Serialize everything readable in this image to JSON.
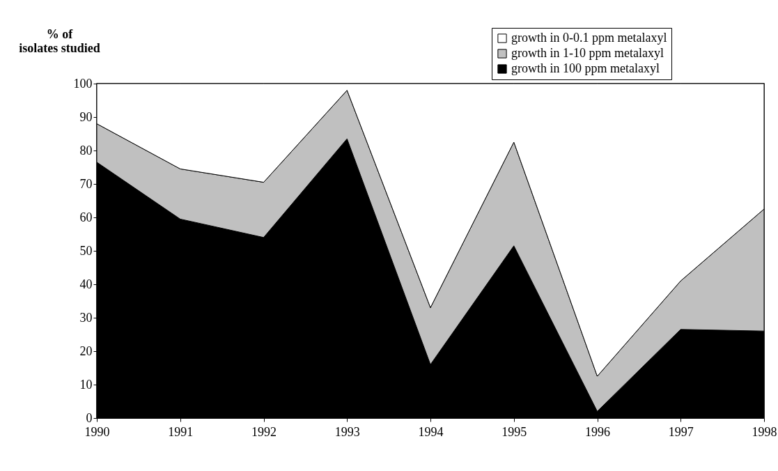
{
  "chart_data": {
    "type": "area",
    "stacked": true,
    "ylabel": "% of isolates studied",
    "categories": [
      "1990",
      "1991",
      "1992",
      "1993",
      "1994",
      "1995",
      "1996",
      "1997",
      "1998"
    ],
    "series": [
      {
        "name": "growth in 100 ppm metalaxyl",
        "color": "#000000",
        "values": [
          76.5,
          59.5,
          54,
          83.5,
          16,
          51.5,
          2,
          26.5,
          26
        ]
      },
      {
        "name": "growth in 1-10 ppm metalaxyl",
        "color": "#c0c0c0",
        "values": [
          11.5,
          15,
          16.5,
          14.5,
          17,
          31,
          10.5,
          14.5,
          36.5
        ]
      },
      {
        "name": "growth in 0-0.1 ppm metalaxyl",
        "color": "#ffffff",
        "values": [
          12,
          25.5,
          29.5,
          2,
          67,
          17.5,
          87.5,
          59,
          37.5
        ]
      }
    ],
    "ylim": [
      0,
      100
    ],
    "yticks": [
      0,
      10,
      20,
      30,
      40,
      50,
      60,
      70,
      80,
      90,
      100
    ],
    "grid": false,
    "legend": "top right"
  }
}
